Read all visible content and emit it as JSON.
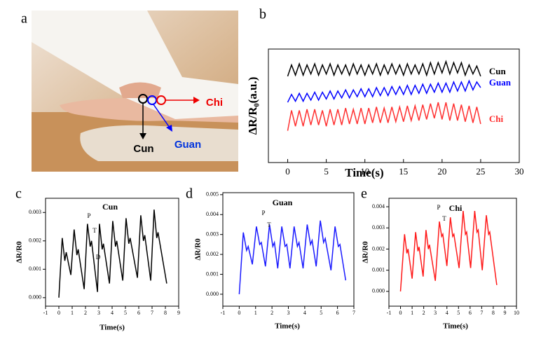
{
  "photo": {
    "panel": "a",
    "labels": [
      "Cun",
      "Guan",
      "Chi"
    ]
  },
  "chart_data": [
    {
      "type": "line",
      "panel": "b",
      "ylabel": "ΔR/R₀(a.u.)",
      "xlabel": "Time(s)",
      "xlim": [
        -2.5,
        30
      ],
      "xticks": [
        0,
        5,
        10,
        15,
        20,
        25,
        30
      ],
      "ylim": [
        0,
        1
      ],
      "x": [
        0,
        0.5,
        1,
        1.5,
        2,
        2.5,
        3,
        3.5,
        4,
        4.5,
        5,
        5.5,
        6,
        6.5,
        7,
        7.5,
        8,
        8.5,
        9,
        9.5,
        10,
        10.5,
        11,
        11.5,
        12,
        12.5,
        13,
        13.5,
        14,
        14.5,
        15,
        15.5,
        16,
        16.5,
        17,
        17.5,
        18,
        18.5,
        19,
        19.5,
        20,
        20.5,
        21,
        21.5,
        22,
        22.5,
        23,
        23.5,
        24,
        24.5,
        25
      ],
      "series": [
        {
          "name": "Cun",
          "color": "#000000",
          "values": [
            0.76,
            0.86,
            0.77,
            0.87,
            0.77,
            0.86,
            0.78,
            0.87,
            0.77,
            0.86,
            0.78,
            0.87,
            0.77,
            0.86,
            0.78,
            0.86,
            0.77,
            0.87,
            0.78,
            0.86,
            0.77,
            0.86,
            0.78,
            0.87,
            0.77,
            0.86,
            0.78,
            0.87,
            0.78,
            0.86,
            0.77,
            0.87,
            0.78,
            0.86,
            0.78,
            0.87,
            0.77,
            0.88,
            0.78,
            0.88,
            0.79,
            0.89,
            0.78,
            0.88,
            0.79,
            0.88,
            0.77,
            0.86,
            0.78,
            0.85,
            0.76
          ]
        },
        {
          "name": "Guan",
          "color": "#0000ff",
          "values": [
            0.53,
            0.6,
            0.54,
            0.61,
            0.54,
            0.61,
            0.55,
            0.62,
            0.55,
            0.62,
            0.56,
            0.63,
            0.56,
            0.63,
            0.57,
            0.64,
            0.57,
            0.64,
            0.58,
            0.65,
            0.58,
            0.65,
            0.58,
            0.66,
            0.59,
            0.66,
            0.59,
            0.67,
            0.6,
            0.67,
            0.6,
            0.68,
            0.6,
            0.68,
            0.61,
            0.69,
            0.61,
            0.69,
            0.62,
            0.7,
            0.62,
            0.7,
            0.62,
            0.71,
            0.63,
            0.71,
            0.63,
            0.72,
            0.64,
            0.71,
            0.66
          ]
        },
        {
          "name": "Chi",
          "color": "#ff3030",
          "values": [
            0.28,
            0.46,
            0.32,
            0.46,
            0.32,
            0.47,
            0.33,
            0.47,
            0.33,
            0.46,
            0.32,
            0.47,
            0.33,
            0.47,
            0.33,
            0.48,
            0.34,
            0.47,
            0.34,
            0.48,
            0.34,
            0.48,
            0.35,
            0.49,
            0.35,
            0.48,
            0.35,
            0.49,
            0.36,
            0.49,
            0.36,
            0.5,
            0.37,
            0.5,
            0.37,
            0.51,
            0.38,
            0.52,
            0.39,
            0.53,
            0.38,
            0.53,
            0.37,
            0.52,
            0.37,
            0.51,
            0.36,
            0.5,
            0.35,
            0.49,
            0.34
          ]
        }
      ]
    },
    {
      "type": "line",
      "panel": "c",
      "title": "Cun",
      "ylabel": "ΔR/R0",
      "xlabel": "Time(s)",
      "color": "#000000",
      "xlim": [
        -1,
        9
      ],
      "xticks": [
        -1,
        0,
        1,
        2,
        3,
        4,
        5,
        6,
        7,
        8,
        9
      ],
      "ylim": [
        -0.0003,
        0.0035
      ],
      "yticks": [
        {
          "value": 0,
          "label": "0.000"
        },
        {
          "value": 0.001,
          "label": "0.001"
        },
        {
          "value": 0.002,
          "label": "0.002"
        },
        {
          "value": 0.003,
          "label": "0.003"
        }
      ],
      "annotations": [
        "P",
        "T",
        "D"
      ],
      "x": [
        0,
        0.25,
        0.45,
        0.55,
        0.9,
        1.15,
        1.35,
        1.45,
        1.9,
        2.15,
        2.35,
        2.45,
        2.9,
        3.05,
        3.25,
        3.35,
        3.8,
        4.05,
        4.25,
        4.35,
        4.8,
        5.05,
        5.25,
        5.35,
        5.9,
        6.15,
        6.35,
        6.45,
        6.9,
        7.15,
        7.35,
        7.45,
        8.1
      ],
      "values": [
        0,
        0.0021,
        0.0013,
        0.0016,
        0.0008,
        0.0024,
        0.0015,
        0.0017,
        0.0003,
        0.0026,
        0.0018,
        0.002,
        0.0002,
        0.0026,
        0.0017,
        0.0019,
        0.0005,
        0.0027,
        0.0018,
        0.002,
        0.0006,
        0.0028,
        0.0019,
        0.0021,
        0.0007,
        0.0029,
        0.002,
        0.0022,
        0.0006,
        0.0031,
        0.0021,
        0.0023,
        0.0005
      ]
    },
    {
      "type": "line",
      "panel": "d",
      "title": "Guan",
      "ylabel": "ΔR/R0",
      "xlabel": "Time(s)",
      "color": "#1a1aff",
      "xlim": [
        -1,
        7
      ],
      "xticks": [
        -1,
        0,
        1,
        2,
        3,
        4,
        5,
        6,
        7
      ],
      "ylim": [
        -0.0006,
        0.0051
      ],
      "yticks": [
        {
          "value": 0,
          "label": "0.000"
        },
        {
          "value": 0.001,
          "label": "0.001"
        },
        {
          "value": 0.002,
          "label": "0.002"
        },
        {
          "value": 0.003,
          "label": "0.003"
        },
        {
          "value": 0.004,
          "label": "0.004"
        },
        {
          "value": 0.005,
          "label": "0.005"
        }
      ],
      "annotations": [
        "P",
        "T"
      ],
      "x": [
        0,
        0.25,
        0.45,
        0.55,
        0.8,
        1.05,
        1.25,
        1.35,
        1.6,
        1.85,
        2.05,
        2.15,
        2.35,
        2.6,
        2.8,
        2.9,
        3.1,
        3.35,
        3.55,
        3.65,
        3.9,
        4.15,
        4.35,
        4.45,
        4.7,
        4.95,
        5.15,
        5.25,
        5.6,
        5.85,
        6.05,
        6.15,
        6.5
      ],
      "values": [
        0,
        0.0031,
        0.0022,
        0.0024,
        0.0015,
        0.0034,
        0.0025,
        0.0026,
        0.0014,
        0.0035,
        0.0024,
        0.0026,
        0.0013,
        0.0034,
        0.0024,
        0.0025,
        0.0013,
        0.0034,
        0.0024,
        0.0026,
        0.0013,
        0.0035,
        0.0025,
        0.0027,
        0.0014,
        0.0037,
        0.0026,
        0.0028,
        0.0012,
        0.0034,
        0.0024,
        0.0025,
        0.0007
      ]
    },
    {
      "type": "line",
      "panel": "e",
      "title": "Chi",
      "ylabel": "ΔR/R0",
      "xlabel": "Time(s)",
      "color": "#ff1a1a",
      "xlim": [
        -1,
        10
      ],
      "xticks": [
        -1,
        0,
        1,
        2,
        3,
        4,
        5,
        6,
        7,
        8,
        9,
        10
      ],
      "ylim": [
        -0.0007,
        0.0044
      ],
      "yticks": [
        {
          "value": 0,
          "label": "0.000"
        },
        {
          "value": 0.001,
          "label": "0.001"
        },
        {
          "value": 0.002,
          "label": "0.002"
        },
        {
          "value": 0.003,
          "label": "0.003"
        },
        {
          "value": 0.004,
          "label": "0.004"
        }
      ],
      "annotations": [
        "P",
        "T"
      ],
      "x": [
        0,
        0.35,
        0.55,
        0.65,
        1.0,
        1.3,
        1.5,
        1.6,
        1.95,
        2.2,
        2.4,
        2.5,
        3.0,
        3.35,
        3.55,
        3.65,
        4.0,
        4.3,
        4.5,
        4.6,
        5.05,
        5.4,
        5.6,
        5.7,
        6.05,
        6.4,
        6.6,
        6.7,
        7.05,
        7.4,
        7.6,
        7.7,
        8.3
      ],
      "values": [
        0,
        0.0027,
        0.0018,
        0.002,
        0.0006,
        0.0028,
        0.0019,
        0.0021,
        0.0007,
        0.0029,
        0.002,
        0.0022,
        0.0005,
        0.0033,
        0.0026,
        0.0027,
        0.0012,
        0.0035,
        0.0026,
        0.0027,
        0.0011,
        0.0038,
        0.0027,
        0.0028,
        0.0011,
        0.0038,
        0.0028,
        0.0029,
        0.001,
        0.0036,
        0.0027,
        0.0028,
        0.0003
      ]
    }
  ]
}
